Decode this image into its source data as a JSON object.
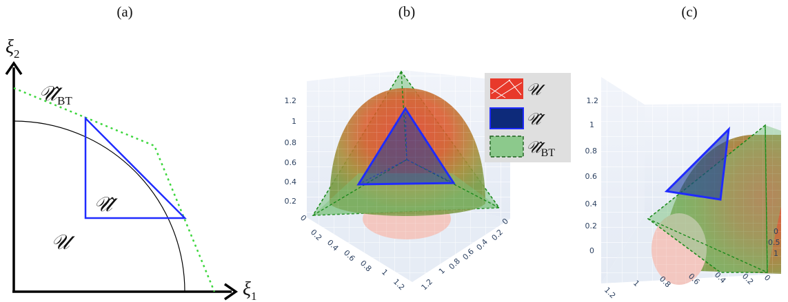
{
  "panels": {
    "a": {
      "label": "(a)"
    },
    "b": {
      "label": "(b)"
    },
    "c": {
      "label": "(c)"
    }
  },
  "panel_a": {
    "xi1_sym": "ξ",
    "xi1_sub": "1",
    "xi2_sym": "ξ",
    "xi2_sub": "2",
    "set_u": "𝒰",
    "set_u_hat": "𝒰̂",
    "set_u_bt_main": "𝒰̂",
    "set_u_bt_sub": "BT",
    "colors": {
      "axis": "#000000",
      "circle": "#000000",
      "triangle": "#1f2bff",
      "bt": "#3cd63c"
    }
  },
  "panel_b": {
    "z_ticks": [
      "1.2",
      "1",
      "0.8",
      "0.6",
      "0.4",
      "0.2",
      "0"
    ],
    "x_ticks": [
      "0.2",
      "0.4",
      "0.6",
      "0.8",
      "1",
      "1.2"
    ],
    "y_ticks": [
      "0",
      "0.2",
      "0.4",
      "0.6",
      "0.8",
      "1",
      "1.2"
    ]
  },
  "panel_c": {
    "z_ticks": [
      "1.2",
      "1",
      "0.8",
      "0.6",
      "0.4",
      "0.2",
      "0"
    ],
    "x_ticks": [
      "1.2",
      "1",
      "0.8",
      "0.6",
      "0.4",
      "0.2",
      "0"
    ],
    "y_ticks": [
      "0",
      "0.5",
      "1"
    ]
  },
  "legend": {
    "u": "𝒰",
    "u_hat": "𝒰̂",
    "u_bt_main": "𝒰̂",
    "u_bt_sub": "BT",
    "colors": {
      "u": "#e8392b",
      "u_hat": "#0d2a7a",
      "u_bt": "#8cc98c"
    }
  }
}
